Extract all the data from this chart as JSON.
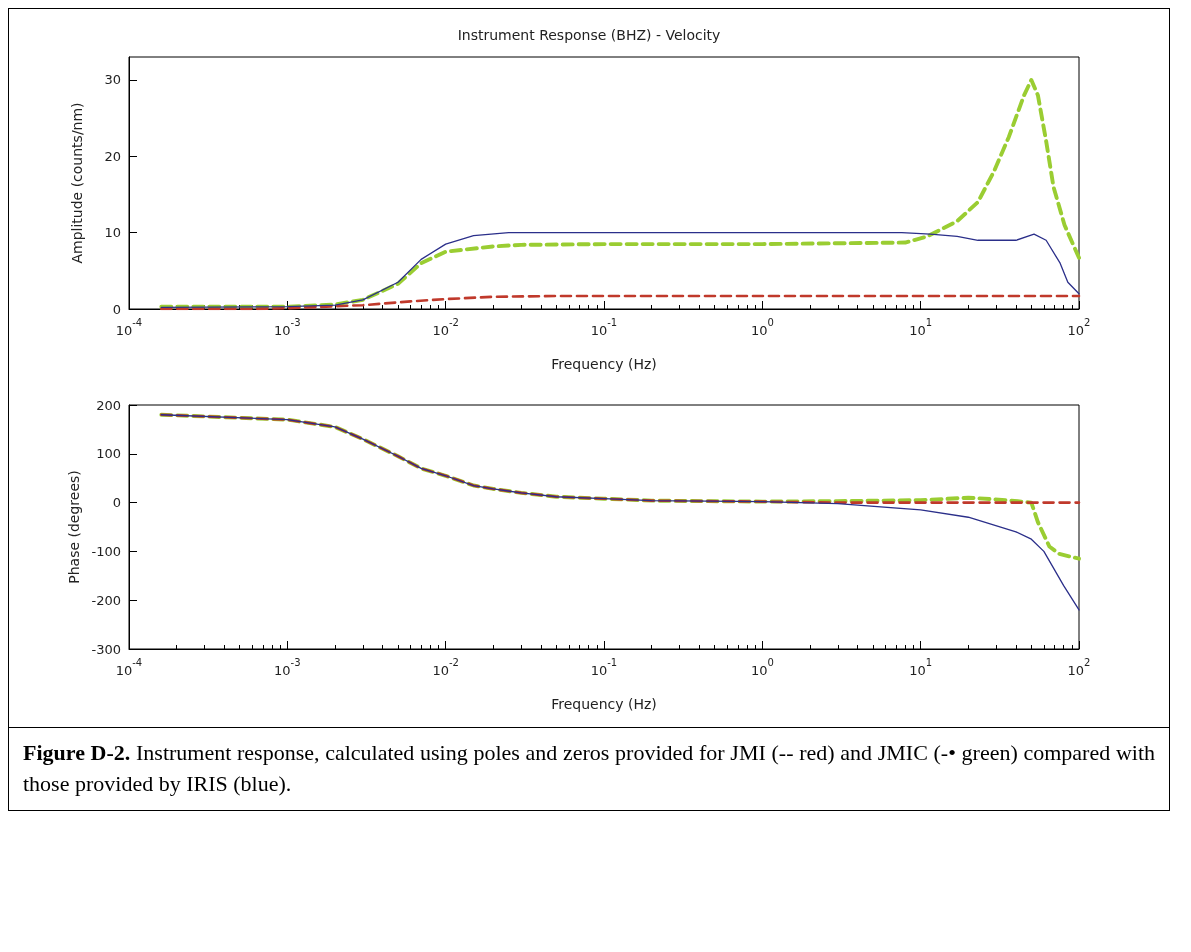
{
  "chart_data": [
    {
      "type": "line",
      "title": "Instrument Response (BHZ) - Velocity",
      "xlabel": "Frequency (Hz)",
      "ylabel": "Amplitude (counts/nm)",
      "log": "x",
      "xlim": [
        0.0001,
        100
      ],
      "xticks": [
        {
          "value": 0.0001,
          "label": "10$^{-4}$"
        },
        {
          "value": 0.001,
          "label": "10$^{-3}$"
        },
        {
          "value": 0.01,
          "label": "10$^{-2}$"
        },
        {
          "value": 0.1,
          "label": "10$^{-1}$"
        },
        {
          "value": 1,
          "label": "10$^{0}$"
        },
        {
          "value": 10,
          "label": "10$^{1}$"
        },
        {
          "value": 100,
          "label": "10$^{2}$"
        }
      ],
      "ylim": [
        0,
        33
      ],
      "yticks": [
        0,
        10,
        20,
        30
      ],
      "grid": false,
      "marker": "none",
      "series": [
        {
          "color": "#2b2f8a",
          "line_style": "solid",
          "x": [
            0.00016,
            0.001,
            0.002,
            0.003,
            0.005,
            0.007,
            0.01,
            0.015,
            0.025,
            0.1,
            1,
            4,
            7.6,
            11.5,
            17,
            23,
            40,
            52,
            62,
            76,
            85,
            100
          ],
          "values": [
            0.2,
            0.3,
            0.5,
            1.2,
            3.5,
            6.5,
            8.5,
            9.6,
            10,
            10,
            10,
            10,
            10,
            9.8,
            9.5,
            9,
            9,
            9.8,
            9,
            6,
            3.5,
            2
          ]
        },
        {
          "color": "#c0392b",
          "line_style": "dashed",
          "x": [
            0.00016,
            0.0006,
            0.001,
            0.003,
            0.006,
            0.01,
            0.02,
            0.05,
            1,
            100
          ],
          "values": [
            0,
            0,
            0.1,
            0.5,
            1,
            1.3,
            1.6,
            1.7,
            1.7,
            1.7
          ]
        },
        {
          "color": "#9acd32",
          "line_style": "dashed",
          "x": [
            0.00016,
            0.001,
            0.002,
            0.003,
            0.005,
            0.007,
            0.01,
            0.02,
            0.03,
            0.1,
            1,
            8,
            11,
            17,
            23,
            29,
            36,
            45,
            50,
            55,
            62,
            69,
            81,
            100
          ],
          "values": [
            0.3,
            0.3,
            0.6,
            1.2,
            3.3,
            6,
            7.5,
            8.2,
            8.4,
            8.5,
            8.5,
            8.7,
            9.5,
            11.5,
            14,
            18,
            22.5,
            28,
            30,
            28,
            22,
            16,
            11,
            6.7
          ]
        }
      ]
    },
    {
      "type": "line",
      "xlabel": "Frequency (Hz)",
      "ylabel": "Phase (degrees)",
      "log": "x",
      "xlim": [
        0.0001,
        100
      ],
      "xticks": [
        {
          "value": 0.0001,
          "label": "10$^{-4}$"
        },
        {
          "value": 0.001,
          "label": "10$^{-3}$"
        },
        {
          "value": 0.01,
          "label": "10$^{-2}$"
        },
        {
          "value": 0.1,
          "label": "10$^{-1}$"
        },
        {
          "value": 1,
          "label": "10$^{0}$"
        },
        {
          "value": 10,
          "label": "10$^{1}$"
        },
        {
          "value": 100,
          "label": "10$^{2}$"
        }
      ],
      "ylim": [
        -300,
        200
      ],
      "yticks": [
        -300,
        -200,
        -100,
        0,
        100,
        200
      ],
      "grid": false,
      "marker": "none",
      "annotations": [
        "Figure D-2.",
        "Instrument response, calculated using poles and zeros provided for JMI (-- red) and JMIC (-• green) compared with those provided by IRIS (blue)."
      ],
      "series": [
        {
          "color": "#2b2f8a",
          "line_style": "solid",
          "x": [
            0.00016,
            0.001,
            0.002,
            0.003,
            0.005,
            0.007,
            0.01,
            0.015,
            0.02,
            0.03,
            0.05,
            0.1,
            0.2,
            1,
            3,
            10,
            20,
            40,
            50,
            60,
            80,
            100
          ],
          "values": [
            180,
            170,
            155,
            130,
            95,
            70,
            55,
            35,
            28,
            20,
            12,
            8,
            4,
            2,
            -2,
            -15,
            -30,
            -60,
            -75,
            -100,
            -170,
            -220
          ]
        },
        {
          "color": "#c0392b",
          "line_style": "dashed",
          "x": [
            0.00016,
            0.001,
            0.002,
            0.003,
            0.005,
            0.007,
            0.01,
            0.015,
            0.02,
            0.03,
            0.05,
            0.1,
            0.2,
            1,
            3,
            10,
            100
          ],
          "values": [
            180,
            170,
            155,
            130,
            95,
            70,
            55,
            35,
            28,
            20,
            12,
            8,
            4,
            2,
            0,
            0,
            0
          ]
        },
        {
          "color": "#9acd32",
          "line_style": "dashed",
          "x": [
            0.00016,
            0.001,
            0.002,
            0.003,
            0.005,
            0.007,
            0.01,
            0.015,
            0.02,
            0.03,
            0.05,
            0.1,
            0.2,
            1,
            3,
            10,
            20,
            35,
            50,
            55,
            65,
            75,
            100
          ],
          "values": [
            180,
            170,
            155,
            130,
            95,
            70,
            55,
            35,
            28,
            20,
            12,
            8,
            4,
            2,
            3,
            5,
            10,
            5,
            0,
            -40,
            -90,
            -105,
            -115
          ]
        }
      ]
    }
  ]
}
